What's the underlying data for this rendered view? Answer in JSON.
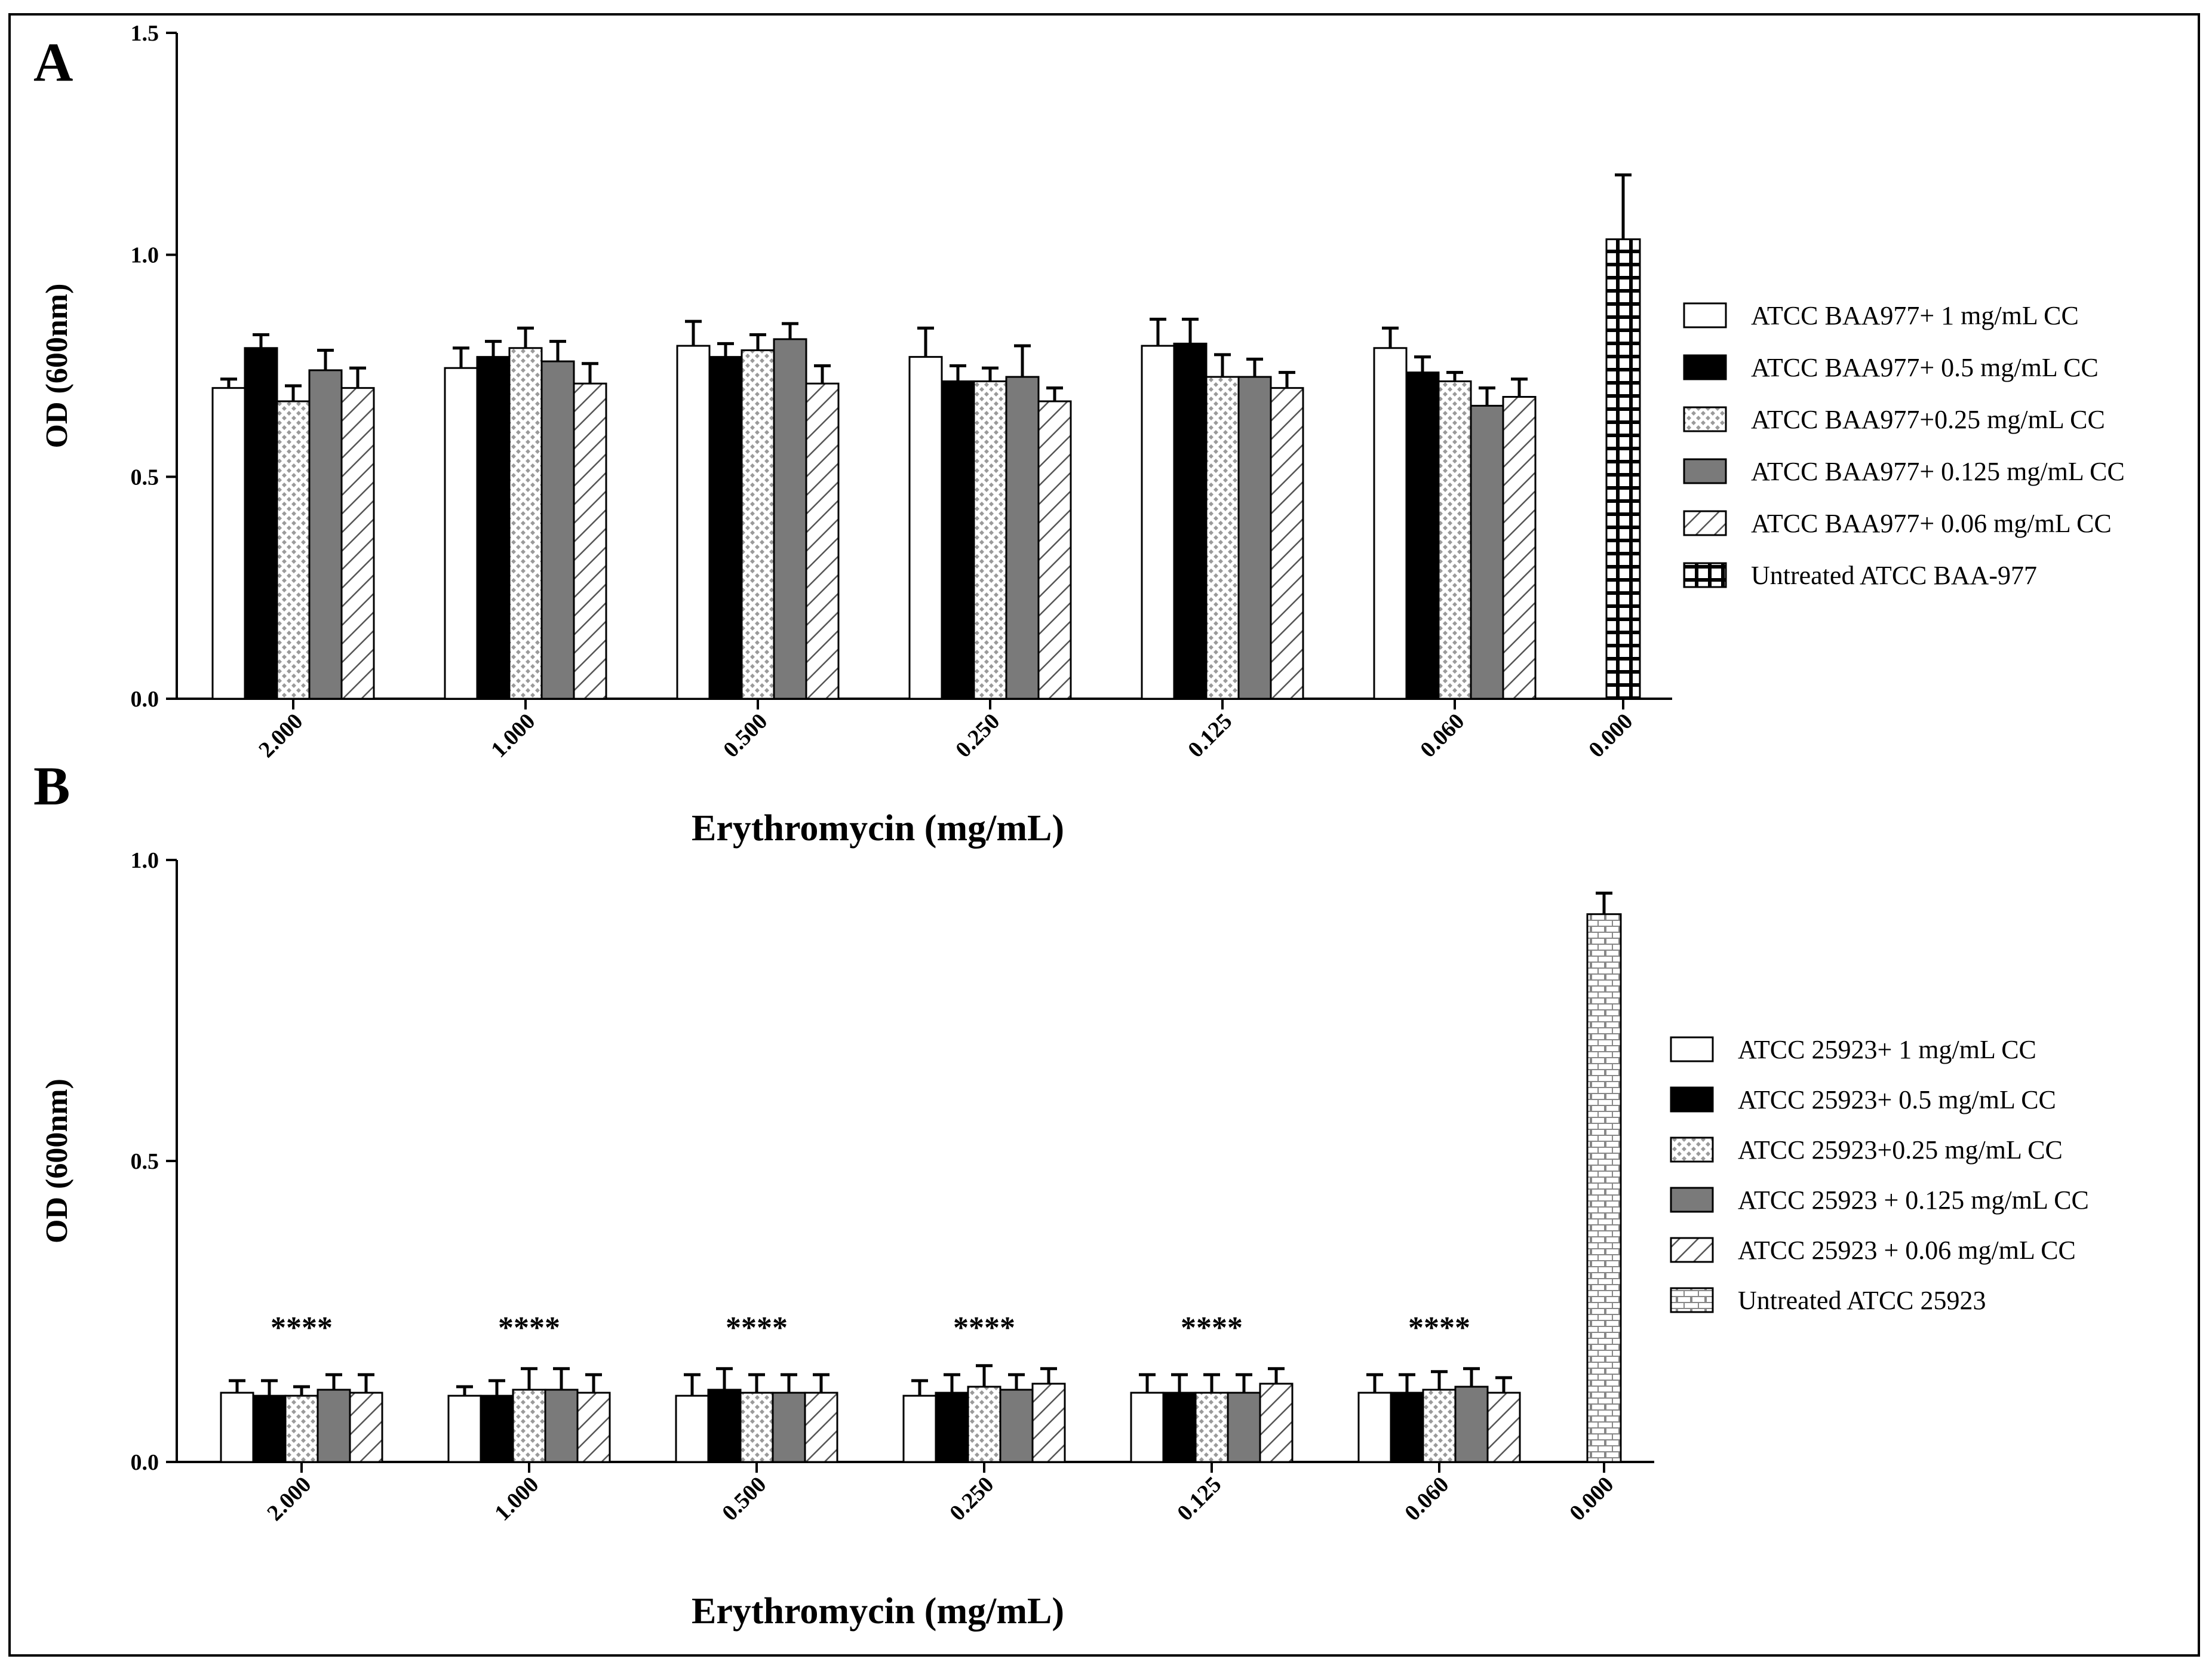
{
  "chart_data": [
    {
      "panel": "A",
      "type": "bar",
      "title": "",
      "xlabel": "Erythromycin (mg/mL)",
      "ylabel": "OD (600nm)",
      "ylim": [
        0,
        1.5
      ],
      "yticks": [
        "0.0",
        "0.5",
        "1.0",
        "1.5"
      ],
      "categories": [
        "2.000",
        "1.000",
        "0.500",
        "0.250",
        "0.125",
        "0.060",
        "0.000"
      ],
      "series": [
        {
          "name": "ATCC BAA977+ 1 mg/mL CC",
          "pattern": "white",
          "values": [
            0.7,
            0.745,
            0.795,
            0.77,
            0.795,
            0.79,
            null
          ],
          "errors": [
            0.02,
            0.045,
            0.055,
            0.065,
            0.06,
            0.045,
            null
          ]
        },
        {
          "name": "ATCC BAA977+ 0.5 mg/mL CC",
          "pattern": "black",
          "values": [
            0.79,
            0.77,
            0.77,
            0.715,
            0.8,
            0.735,
            null
          ],
          "errors": [
            0.03,
            0.035,
            0.03,
            0.035,
            0.055,
            0.035,
            null
          ]
        },
        {
          "name": "ATCC BAA977+0.25 mg/mL CC",
          "pattern": "dots",
          "values": [
            0.67,
            0.79,
            0.785,
            0.715,
            0.725,
            0.715,
            null
          ],
          "errors": [
            0.035,
            0.045,
            0.035,
            0.03,
            0.05,
            0.02,
            null
          ]
        },
        {
          "name": "ATCC BAA977+ 0.125 mg/mL CC",
          "pattern": "gray",
          "values": [
            0.74,
            0.76,
            0.81,
            0.725,
            0.725,
            0.66,
            null
          ],
          "errors": [
            0.045,
            0.045,
            0.035,
            0.07,
            0.04,
            0.04,
            null
          ]
        },
        {
          "name": "ATCC BAA977+ 0.06 mg/mL CC",
          "pattern": "hatch",
          "values": [
            0.7,
            0.71,
            0.71,
            0.67,
            0.7,
            0.68,
            null
          ],
          "errors": [
            0.045,
            0.045,
            0.04,
            0.03,
            0.035,
            0.04,
            null
          ]
        },
        {
          "name": "Untreated ATCC BAA-977",
          "pattern": "grid",
          "values": [
            null,
            null,
            null,
            null,
            null,
            null,
            1.035
          ],
          "errors": [
            null,
            null,
            null,
            null,
            null,
            null,
            0.145
          ]
        }
      ],
      "legend_position": "right"
    },
    {
      "panel": "B",
      "type": "bar",
      "title": "",
      "xlabel": "Erythromycin (mg/mL)",
      "ylabel": "OD (600nm)",
      "ylim": [
        0,
        1.0
      ],
      "yticks": [
        "0.0",
        "0.5",
        "1.0"
      ],
      "categories": [
        "2.000",
        "1.000",
        "0.500",
        "0.250",
        "0.125",
        "0.060",
        "0.000"
      ],
      "annotations": [
        "****",
        "****",
        "****",
        "****",
        "****",
        "****",
        ""
      ],
      "series": [
        {
          "name": "ATCC 25923+ 1 mg/mL CC",
          "pattern": "white",
          "values": [
            0.115,
            0.11,
            0.11,
            0.11,
            0.115,
            0.115,
            null
          ],
          "errors": [
            0.02,
            0.015,
            0.035,
            0.025,
            0.03,
            0.03,
            null
          ]
        },
        {
          "name": "ATCC 25923+ 0.5 mg/mL CC",
          "pattern": "black",
          "values": [
            0.11,
            0.11,
            0.12,
            0.115,
            0.115,
            0.115,
            null
          ],
          "errors": [
            0.025,
            0.025,
            0.035,
            0.03,
            0.03,
            0.03,
            null
          ]
        },
        {
          "name": "ATCC 25923+0.25 mg/mL CC",
          "pattern": "dots",
          "values": [
            0.11,
            0.12,
            0.115,
            0.125,
            0.115,
            0.12,
            null
          ],
          "errors": [
            0.015,
            0.035,
            0.03,
            0.035,
            0.03,
            0.03,
            null
          ]
        },
        {
          "name": "ATCC 25923 + 0.125 mg/mL CC",
          "pattern": "gray",
          "values": [
            0.12,
            0.12,
            0.115,
            0.12,
            0.115,
            0.125,
            null
          ],
          "errors": [
            0.025,
            0.035,
            0.03,
            0.025,
            0.03,
            0.03,
            null
          ]
        },
        {
          "name": "ATCC 25923 + 0.06 mg/mL CC",
          "pattern": "hatch",
          "values": [
            0.115,
            0.115,
            0.115,
            0.13,
            0.13,
            0.115,
            null
          ],
          "errors": [
            0.03,
            0.03,
            0.03,
            0.025,
            0.025,
            0.025,
            null
          ]
        },
        {
          "name": "Untreated ATCC 25923",
          "pattern": "brick",
          "values": [
            null,
            null,
            null,
            null,
            null,
            null,
            0.91
          ],
          "errors": [
            null,
            null,
            null,
            null,
            null,
            null,
            0.035
          ]
        }
      ],
      "legend_position": "right"
    }
  ]
}
